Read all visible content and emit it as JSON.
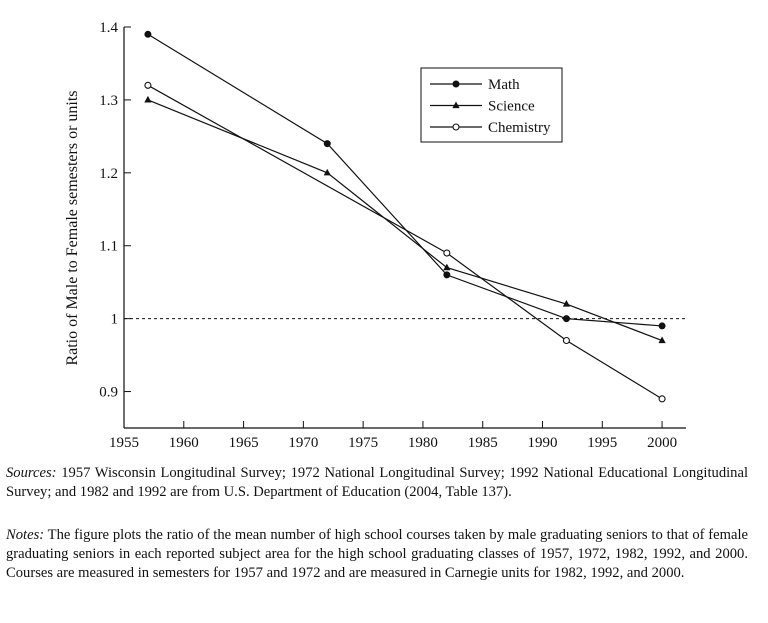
{
  "chart_data": {
    "type": "line",
    "title": "",
    "xlabel": "",
    "ylabel": "Ratio of Male to Female semesters or units",
    "xlim": [
      1955,
      2002
    ],
    "ylim": [
      0.85,
      1.4
    ],
    "xticks": [
      1955,
      1960,
      1965,
      1970,
      1975,
      1980,
      1985,
      1990,
      1995,
      2000
    ],
    "yticks": [
      0.9,
      1.0,
      1.1,
      1.2,
      1.3,
      1.4
    ],
    "ytick_labels": [
      "0.9",
      "1",
      "1.1",
      "1.2",
      "1.3",
      "1.4"
    ],
    "reference_line": 1.0,
    "legend_position": "top-right",
    "grid": false,
    "series": [
      {
        "name": "Math",
        "marker": "filled-circle",
        "x": [
          1957,
          1972,
          1982,
          1992,
          2000
        ],
        "y": [
          1.39,
          1.24,
          1.06,
          1.0,
          0.99
        ]
      },
      {
        "name": "Science",
        "marker": "filled-triangle",
        "x": [
          1957,
          1972,
          1982,
          1992,
          2000
        ],
        "y": [
          1.3,
          1.2,
          1.07,
          1.02,
          0.97
        ]
      },
      {
        "name": "Chemistry",
        "marker": "open-circle",
        "x": [
          1957,
          1982,
          1992,
          2000
        ],
        "y": [
          1.32,
          1.09,
          0.97,
          0.89
        ]
      }
    ]
  },
  "sources": {
    "label": "Sources:",
    "text": " 1957 Wisconsin Longitudinal Survey; 1972 National Longitudinal Survey; 1992 National Educational Longitudinal Survey; and 1982 and 1992 are from U.S. Department of Education (2004, Table 137)."
  },
  "notes": {
    "label": "Notes:",
    "text": " The figure plots the ratio of the mean number of high school courses taken by male graduating seniors to that of female graduating seniors in each reported subject area for the high school graduating classes of 1957, 1972, 1982, 1992, and 2000. Courses are measured in semesters for 1957 and 1972 and are measured in Carnegie units for 1982, 1992, and 2000."
  }
}
